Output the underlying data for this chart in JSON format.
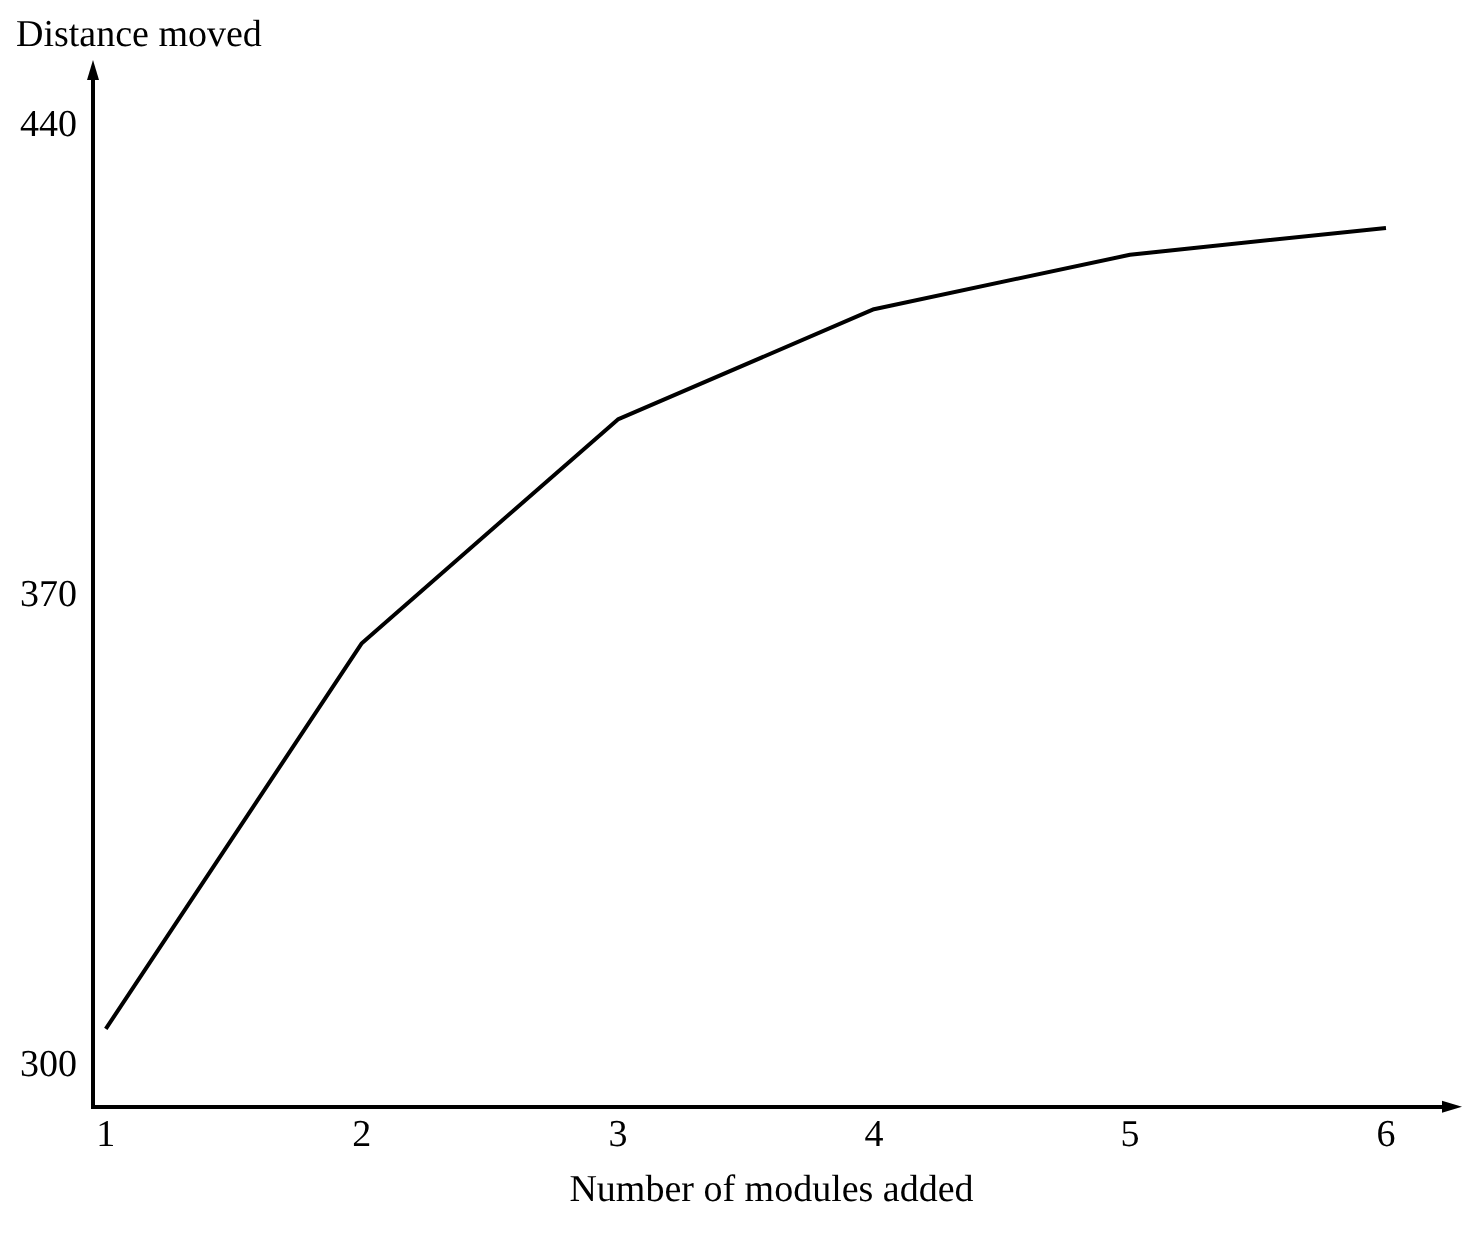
{
  "chart_data": {
    "type": "line",
    "xlabel": "Number of modules added",
    "ylabel": "Distance moved",
    "x": [
      1,
      2,
      3,
      4,
      5,
      6
    ],
    "series": [
      {
        "color": "#000000",
        "values": [
          305.6,
          363,
          396.3,
          412.7,
          420.8,
          424.8
        ]
      }
    ],
    "xlim": [
      0.95,
      6.25
    ],
    "xticks": [
      1,
      2,
      3,
      4,
      5,
      6
    ],
    "ylim": [
      294,
      448
    ],
    "yticks": [
      300,
      370,
      440
    ],
    "grid": false,
    "legend": false,
    "marker": "none",
    "line_style": "solid"
  }
}
